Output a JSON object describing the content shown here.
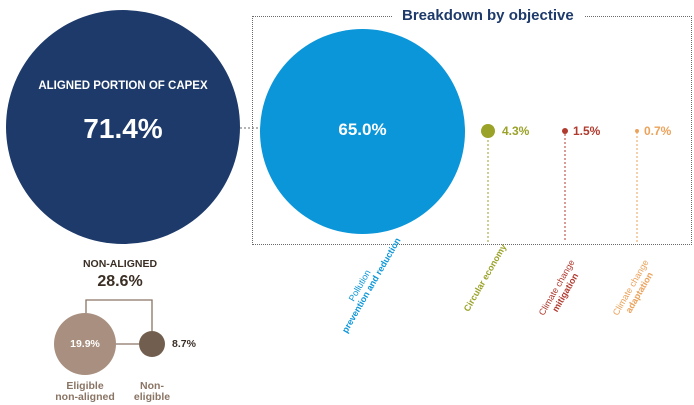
{
  "chart_data": {
    "type": "bubble",
    "title": "Breakdown by objective",
    "aligned": {
      "label": "ALIGNED PORTION OF CAPEX",
      "value": 71.4,
      "display": "71.4%",
      "color": "#1d3a6b"
    },
    "objectives": [
      {
        "name": "Pollution prevention and reduction",
        "name_light": "Pollution",
        "name_bold": "prevention and reduction",
        "value": 65.0,
        "display": "65.0%",
        "color": "#0b96d9"
      },
      {
        "name": "Circular economy",
        "name_light": "",
        "name_bold": "Circular economy",
        "value": 4.3,
        "display": "4.3%",
        "color": "#9aa228"
      },
      {
        "name": "Climate change mitigation",
        "name_light": "Climate change",
        "name_bold": "mitigation",
        "value": 1.5,
        "display": "1.5%",
        "color": "#b03a2e"
      },
      {
        "name": "Climate change adaptation",
        "name_light": "Climate change",
        "name_bold": "adaptation",
        "value": 0.7,
        "display": "0.7%",
        "color": "#eba25a"
      }
    ],
    "non_aligned": {
      "label": "NON-ALIGNED",
      "value": 28.6,
      "display": "28.6%",
      "parts": [
        {
          "name": "Eligible non-aligned",
          "name_lines": [
            "Eligible",
            "non-aligned"
          ],
          "value": 19.9,
          "display": "19.9%",
          "color": "#a88f7f"
        },
        {
          "name": "Non-eligible",
          "name_lines": [
            "Non-",
            "eligible"
          ],
          "value": 8.7,
          "display": "8.7%",
          "color": "#715e4e"
        }
      ]
    }
  }
}
